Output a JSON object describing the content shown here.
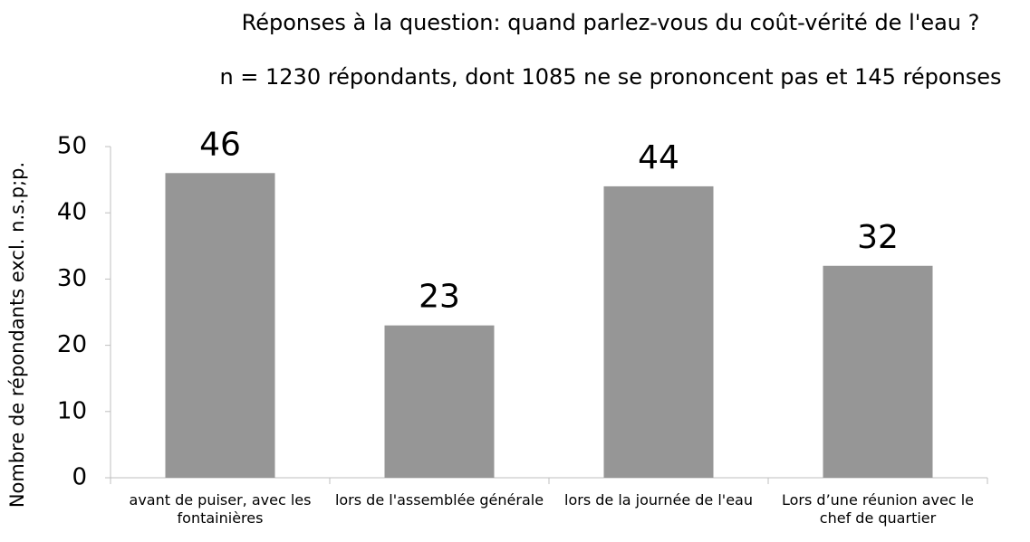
{
  "chart_data": {
    "type": "bar",
    "title": "Réponses à la question: quand parlez-vous du coût-vérité de l'eau ?",
    "subtitle": "n = 1230 répondants, dont 1085 ne se prononcent pas et 145 réponses",
    "y_label": "Nombre de répondants excl. n.s.p;p.",
    "categories": [
      "avant de puiser, avec les fontainières",
      "lors de l'assemblée générale",
      "lors de la journée de l'eau",
      "Lors d’une réunion avec le chef de quartier"
    ],
    "values": [
      46,
      23,
      44,
      32
    ],
    "color": "#969696",
    "ylim": [
      0,
      50
    ],
    "yticks": [
      0,
      10,
      20,
      30,
      40,
      50
    ],
    "grid": false
  }
}
